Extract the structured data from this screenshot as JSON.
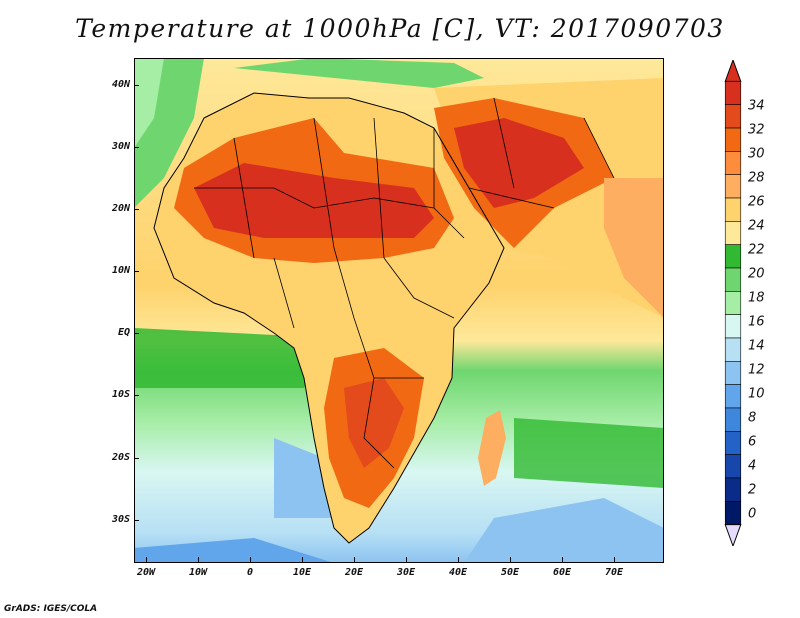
{
  "title": "Temperature at 1000hPa [C], VT: 2017090703",
  "credit": "GrADS: IGES/COLA",
  "axes": {
    "lat_labels": [
      "40N",
      "30N",
      "20N",
      "10N",
      "EQ",
      "10S",
      "20S",
      "30S"
    ],
    "lon_labels": [
      "20W",
      "10W",
      "0",
      "10E",
      "20E",
      "30E",
      "40E",
      "50E",
      "60E",
      "70E"
    ]
  },
  "colorbar": {
    "labels": [
      "34",
      "32",
      "30",
      "28",
      "26",
      "24",
      "22",
      "20",
      "18",
      "16",
      "14",
      "12",
      "10",
      "8",
      "6",
      "4",
      "2",
      "0"
    ],
    "colors": [
      "#d7301f",
      "#e34a1c",
      "#f16913",
      "#fd8d3c",
      "#fdae61",
      "#fed26c",
      "#fee89a",
      "#31b931",
      "#6fd66f",
      "#a6eda6",
      "#d9f7f2",
      "#b7e0f5",
      "#8cc3f0",
      "#61a5ea",
      "#3f87dc",
      "#2462c8",
      "#1747ab",
      "#0b2b88",
      "#001966"
    ],
    "over_color": "#d7301f",
    "under_color": "#e6dcff"
  }
}
